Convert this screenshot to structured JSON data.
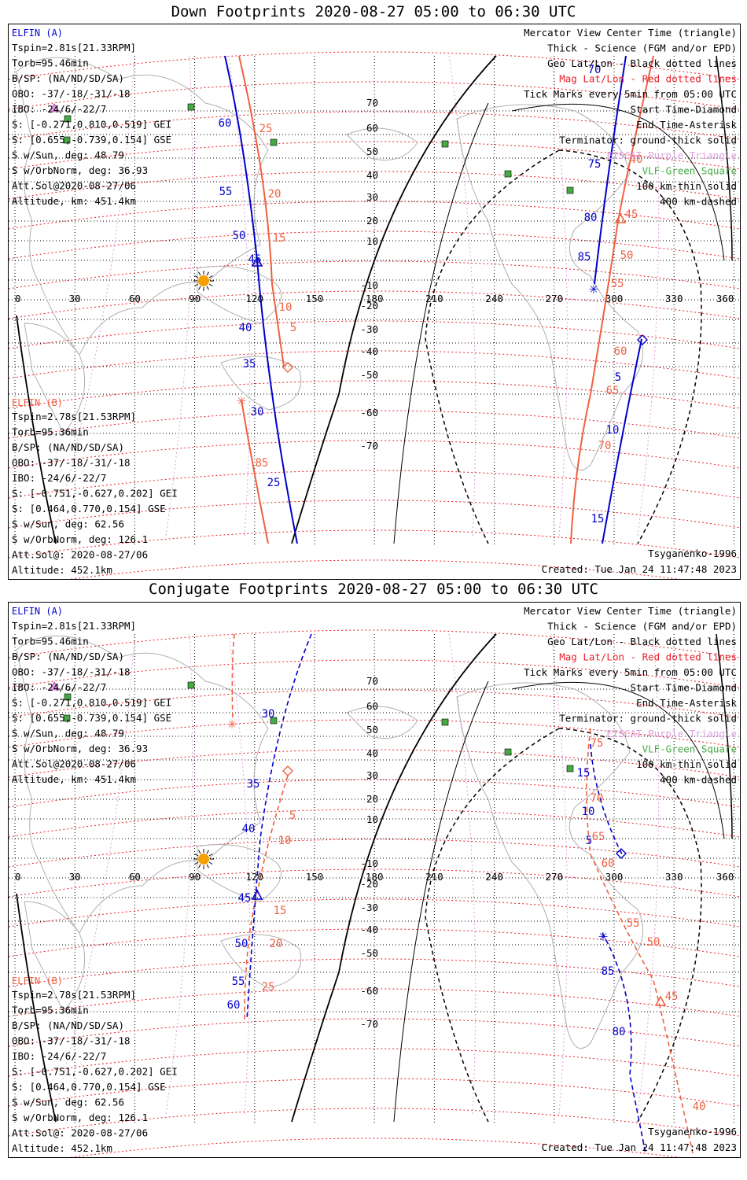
{
  "panels": [
    {
      "title": "Down Footprints 2020-08-27 05:00 to 06:30 UTC",
      "elfin_a": {
        "header": "ELFIN (A)",
        "lines": [
          "Tspin=2.81s[21.33RPM]",
          "Torb=95.46min",
          "B/SP: (NA/ND/SD/SA)",
          "OBO: -37/-18/-31/-18",
          "IBO: -24/6/-22/7",
          "S: [-0.271,0.810,0.519] GEI",
          "S: [0.655,-0.739,0.154] GSE",
          "S w/Sun, deg: 48.79",
          "S w/OrbNorm, deg: 36.93",
          "Att.Sol@2020-08-27/06",
          "Altitude, km: 451.4km"
        ]
      },
      "elfin_b": {
        "header": "ELFIN (B)",
        "lines": [
          "Tspin=2.78s[21.53RPM]",
          "Torb=95.36min",
          "B/SP: (NA/ND/SD/SA)",
          "OBO: -37/-18/-31/-18",
          "IBO: -24/6/-22/7",
          "S: [-0.751,-0.627,0.202] GEI",
          "S: [0.464,0.770,0.154] GSE",
          "S w/Sun, deg: 62.56",
          "S w/OrbNorm, deg: 126.1",
          "Att.Sol@: 2020-08-27/06",
          "Altitude: 452.1km"
        ]
      },
      "legend": [
        {
          "text": "Mercator View Center Time (triangle)",
          "color": "#000000"
        },
        {
          "text": "Thick - Science (FGM and/or EPD)",
          "color": "#000000"
        },
        {
          "text": "Geo Lat/Lon - Black dotted lines",
          "color": "#000000"
        },
        {
          "text": "Mag Lat/Lon - Red dotted lines",
          "color": "#e8202a"
        },
        {
          "text": "Tick Marks every 5min from 05:00 UTC",
          "color": "#000000"
        },
        {
          "text": "Start Time-Diamond",
          "color": "#000000"
        },
        {
          "text": "End Time-Asterisk",
          "color": "#000000"
        },
        {
          "text": "Terminator: ground-thick solid",
          "color": "#000000"
        },
        {
          "text": "EISCAT-Purple Triangle",
          "color": "#e0a0e0"
        },
        {
          "text": "VLF-Green Square",
          "color": "#44aa44"
        },
        {
          "text": "100 km-thin solid",
          "color": "#000000"
        },
        {
          "text": "400 km-dashed",
          "color": "#000000"
        }
      ],
      "model": "Tsyganenko-1996",
      "created": "Created: Tue Jan 24 11:47:48 2023",
      "track_a_ticks": [
        "70",
        "75",
        "80",
        "85",
        "60",
        "55",
        "50",
        "45",
        "40",
        "35",
        "30",
        "25",
        "5",
        "10",
        "15"
      ],
      "track_b_ticks": [
        "25",
        "20",
        "15",
        "10",
        "5",
        "85",
        "40",
        "45",
        "50",
        "55",
        "60",
        "65",
        "70"
      ]
    },
    {
      "title": "Conjugate Footprints 2020-08-27 05:00 to 06:30 UTC",
      "elfin_a": {
        "header": "ELFIN (A)",
        "lines": [
          "Tspin=2.81s[21.33RPM]",
          "Torb=95.46min",
          "B/SP: (NA/ND/SD/SA)",
          "OBO: -37/-18/-31/-18",
          "IBO: -24/6/-22/7",
          "S: [-0.271,0.810,0.519] GEI",
          "S: [0.655,-0.739,0.154] GSE",
          "S w/Sun, deg: 48.79",
          "S w/OrbNorm, deg: 36.93",
          "Att.Sol@2020-08-27/06",
          "Altitude, km: 451.4km"
        ]
      },
      "elfin_b": {
        "header": "ELFIN (B)",
        "lines": [
          "Tspin=2.78s[21.53RPM]",
          "Torb=95.36min",
          "B/SP: (NA/ND/SD/SA)",
          "OBO: -37/-18/-31/-18",
          "IBO: -24/6/-22/7",
          "S: [-0.751,-0.627,0.202] GEI",
          "S: [0.464,0.770,0.154] GSE",
          "S w/Sun, deg: 62.56",
          "S w/OrbNorm, deg: 126.1",
          "Att.Sol@: 2020-08-27/06",
          "Altitude: 452.1km"
        ]
      },
      "legend": [
        {
          "text": "Mercator View Center Time (triangle)",
          "color": "#000000"
        },
        {
          "text": "Thick - Science (FGM and/or EPD)",
          "color": "#000000"
        },
        {
          "text": "Geo Lat/Lon - Black dotted lines",
          "color": "#000000"
        },
        {
          "text": "Mag Lat/Lon - Red dotted lines",
          "color": "#e8202a"
        },
        {
          "text": "Tick Marks every 5min from 05:00 UTC",
          "color": "#000000"
        },
        {
          "text": "Start Time-Diamond",
          "color": "#000000"
        },
        {
          "text": "End Time-Asterisk",
          "color": "#000000"
        },
        {
          "text": "Terminator: ground-thick solid",
          "color": "#000000"
        },
        {
          "text": "EISCAT-Purple Triangle",
          "color": "#e0a0e0"
        },
        {
          "text": "VLF-Green Square",
          "color": "#44aa44"
        },
        {
          "text": "100 km-thin solid",
          "color": "#000000"
        },
        {
          "text": "400 km-dashed",
          "color": "#000000"
        }
      ],
      "model": "Tsyganenko-1996",
      "created": "Created: Tue Jan 24 11:47:48 2023",
      "track_a_ticks": [
        "30",
        "35",
        "40",
        "45",
        "50",
        "55",
        "60",
        "15",
        "10",
        "5",
        "85",
        "80",
        "75"
      ],
      "track_b_ticks": [
        "5",
        "10",
        "15",
        "20",
        "25",
        "75",
        "70",
        "65",
        "60",
        "55",
        "50",
        "45",
        "40"
      ]
    }
  ],
  "map": {
    "lon_labels": [
      "0",
      "30",
      "60",
      "90",
      "120",
      "150",
      "180",
      "210",
      "240",
      "270",
      "300",
      "330",
      "360"
    ],
    "lat_labels": [
      "70",
      "60",
      "50",
      "40",
      "30",
      "20",
      "10",
      "0",
      "-10",
      "-20",
      "-30",
      "-40",
      "-50",
      "-60",
      "-70"
    ]
  },
  "colors": {
    "elfin_a": "#0000cc",
    "elfin_b": "#f06040",
    "mag_grid": "#e8202a",
    "geo_grid": "#000000",
    "eiscat": "#e0a0e0",
    "vlf": "#44aa44",
    "sun": "#f5a000",
    "coast": "#b0b0b0"
  }
}
